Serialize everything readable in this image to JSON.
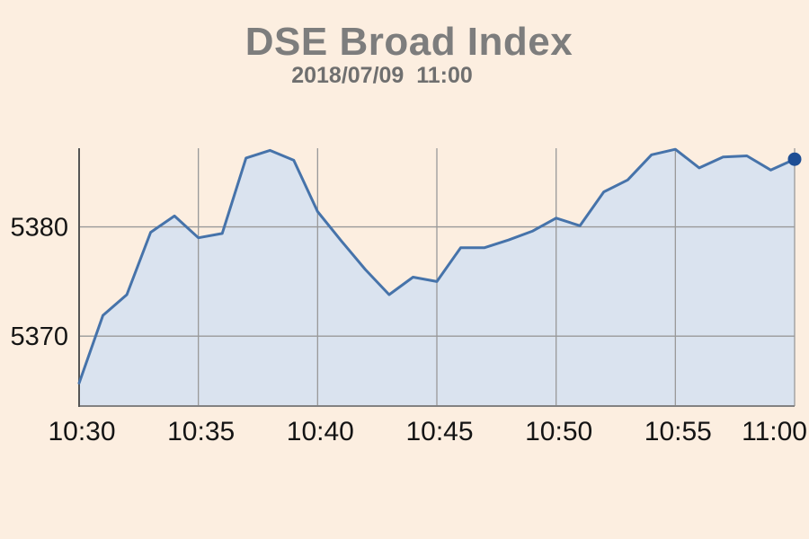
{
  "page": {
    "background_color": "#fceee0"
  },
  "header": {
    "title": "DSE Broad Index",
    "subtitle": "2018/07/09  11:00"
  },
  "chart_data": {
    "type": "area",
    "title": "DSE Broad Index",
    "subtitle": "2018/07/09  11:00",
    "x": [
      "10:30",
      "10:31",
      "10:32",
      "10:33",
      "10:34",
      "10:35",
      "10:36",
      "10:37",
      "10:38",
      "10:39",
      "10:40",
      "10:41",
      "10:42",
      "10:43",
      "10:44",
      "10:45",
      "10:46",
      "10:47",
      "10:48",
      "10:49",
      "10:50",
      "10:51",
      "10:52",
      "10:53",
      "10:54",
      "10:55",
      "10:56",
      "10:57",
      "10:58",
      "10:59",
      "11:00"
    ],
    "values": [
      5365.7,
      5371.9,
      5373.8,
      5379.5,
      5381.0,
      5379.0,
      5379.4,
      5386.3,
      5387.0,
      5386.1,
      5381.4,
      5378.7,
      5376.1,
      5373.8,
      5375.4,
      5375.0,
      5378.1,
      5378.1,
      5378.8,
      5379.6,
      5380.8,
      5380.1,
      5383.2,
      5384.3,
      5386.6,
      5387.1,
      5385.4,
      5386.4,
      5386.5,
      5385.2,
      5386.2
    ],
    "x_tick_labels": [
      "10:30",
      "10:35",
      "10:40",
      "10:45",
      "10:50",
      "10:55",
      "11:00"
    ],
    "y_ticks": [
      5370,
      5380
    ],
    "ylim": [
      5363.6,
      5387.2
    ],
    "xlabel": "",
    "ylabel": "",
    "grid": true,
    "legend_position": "none",
    "last_point_marker": true,
    "colors": {
      "background": "#fceee0",
      "area_fill": "#dae3ef",
      "line": "#4673aa",
      "marker": "#1e4e94",
      "gridline": "#999999",
      "y_axis_line": "#555555",
      "x_axis_line": "#828282",
      "tick_text": "#141414",
      "title_text": "#7d7d7d",
      "subtitle_text": "#6f6f6f"
    }
  }
}
